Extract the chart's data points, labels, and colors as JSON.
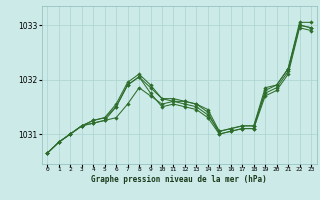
{
  "title": "Graphe pression niveau de la mer (hPa)",
  "x_ticks": [
    0,
    1,
    2,
    3,
    4,
    5,
    6,
    7,
    8,
    9,
    10,
    11,
    12,
    13,
    14,
    15,
    16,
    17,
    18,
    19,
    20,
    21,
    22,
    23
  ],
  "ylim": [
    1030.45,
    1033.35
  ],
  "yticks": [
    1031,
    1032,
    1033
  ],
  "background_color": "#cceae7",
  "grid_color": "#aad4d0",
  "line_color": "#2d6e2d",
  "series": [
    [
      1030.65,
      1030.85,
      1031.0,
      1031.15,
      1031.2,
      1031.25,
      1031.3,
      1031.55,
      1031.85,
      1031.7,
      1031.55,
      1031.6,
      1031.55,
      1031.5,
      1031.35,
      1031.05,
      1031.1,
      1031.15,
      1031.15,
      1031.75,
      1031.85,
      1032.15,
      1033.0,
      1032.95
    ],
    [
      1030.65,
      1030.85,
      1031.0,
      1031.15,
      1031.25,
      1031.3,
      1031.5,
      1031.9,
      1032.05,
      1031.85,
      1031.65,
      1031.65,
      1031.6,
      1031.55,
      1031.45,
      1031.05,
      1031.1,
      1031.15,
      1031.15,
      1031.85,
      1031.9,
      1032.2,
      1033.05,
      1033.05
    ],
    [
      1030.65,
      1030.85,
      1031.0,
      1031.15,
      1031.2,
      1031.25,
      1031.5,
      1031.9,
      1032.05,
      1031.75,
      1031.5,
      1031.55,
      1031.5,
      1031.45,
      1031.3,
      1031.0,
      1031.05,
      1031.1,
      1031.1,
      1031.7,
      1031.8,
      1032.1,
      1032.95,
      1032.9
    ],
    [
      1030.65,
      1030.85,
      1031.0,
      1031.15,
      1031.25,
      1031.3,
      1031.55,
      1031.95,
      1032.1,
      1031.9,
      1031.65,
      1031.6,
      1031.6,
      1031.55,
      1031.4,
      1031.0,
      1031.05,
      1031.1,
      1031.1,
      1031.8,
      1031.9,
      1032.2,
      1033.0,
      1032.95
    ]
  ]
}
